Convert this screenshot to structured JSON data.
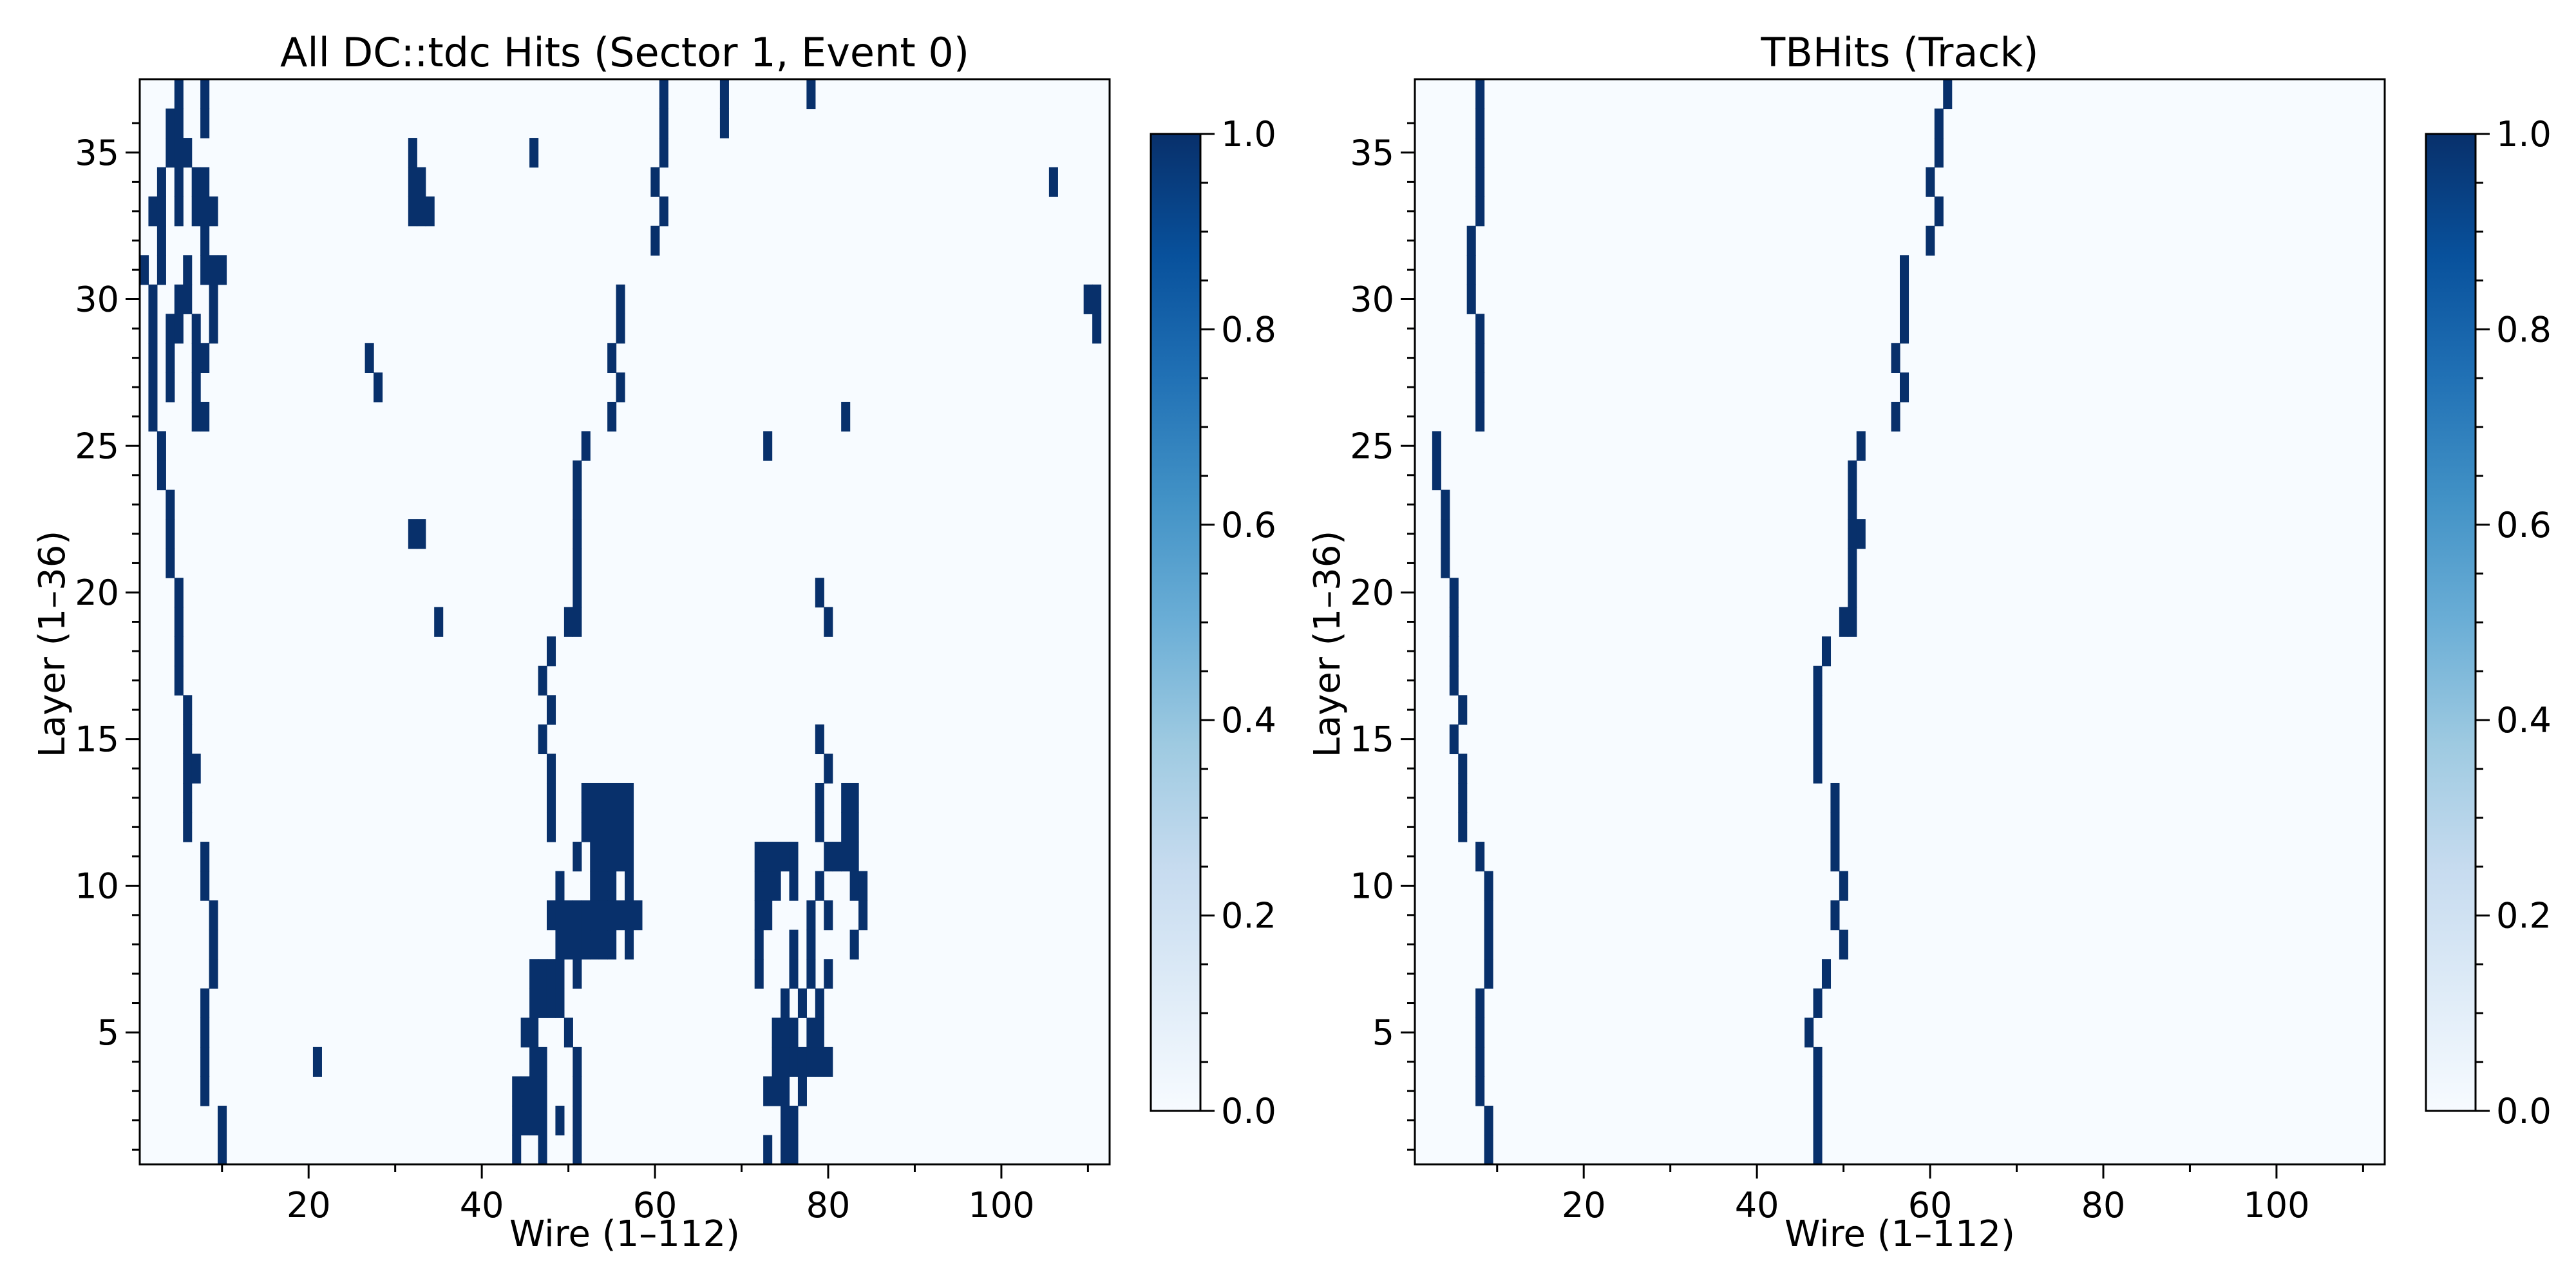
{
  "chart_data": [
    {
      "type": "heatmap",
      "title": "All DC::tdc Hits (Sector 1, Event 0)",
      "xlabel": "Wire (1–112)",
      "ylabel": "Layer (1–36)",
      "xlim": [
        1,
        112
      ],
      "ylim": [
        1,
        36
      ],
      "x_ticks": [
        20,
        40,
        60,
        80,
        100
      ],
      "y_ticks": [
        5,
        10,
        15,
        20,
        25,
        30,
        35
      ],
      "colormap": [
        "#f7fbff",
        "#deebf7",
        "#c6dbef",
        "#9ecae1",
        "#6baed6",
        "#4292c6",
        "#2171b5",
        "#08519c",
        "#08306b"
      ],
      "colorbar": {
        "min": 0.0,
        "max": 1.0,
        "ticks": [
          "0.0",
          "0.2",
          "0.4",
          "0.6",
          "0.8",
          "1.0"
        ]
      },
      "hits": [
        [
          1,
          10
        ],
        [
          1,
          44
        ],
        [
          1,
          47
        ],
        [
          1,
          51
        ],
        [
          1,
          73
        ],
        [
          1,
          75
        ],
        [
          1,
          76
        ],
        [
          2,
          10
        ],
        [
          2,
          44
        ],
        [
          2,
          45
        ],
        [
          2,
          46
        ],
        [
          2,
          47
        ],
        [
          2,
          49
        ],
        [
          2,
          51
        ],
        [
          2,
          75
        ],
        [
          2,
          76
        ],
        [
          3,
          8
        ],
        [
          3,
          44
        ],
        [
          3,
          45
        ],
        [
          3,
          46
        ],
        [
          3,
          47
        ],
        [
          3,
          51
        ],
        [
          3,
          73
        ],
        [
          3,
          74
        ],
        [
          3,
          75
        ],
        [
          3,
          77
        ],
        [
          4,
          8
        ],
        [
          4,
          21
        ],
        [
          4,
          46
        ],
        [
          4,
          47
        ],
        [
          4,
          51
        ],
        [
          4,
          74
        ],
        [
          4,
          75
        ],
        [
          4,
          76
        ],
        [
          4,
          77
        ],
        [
          4,
          78
        ],
        [
          4,
          79
        ],
        [
          4,
          80
        ],
        [
          5,
          8
        ],
        [
          5,
          45
        ],
        [
          5,
          46
        ],
        [
          5,
          50
        ],
        [
          5,
          74
        ],
        [
          5,
          75
        ],
        [
          5,
          76
        ],
        [
          5,
          78
        ],
        [
          5,
          79
        ],
        [
          6,
          8
        ],
        [
          6,
          46
        ],
        [
          6,
          47
        ],
        [
          6,
          48
        ],
        [
          6,
          49
        ],
        [
          6,
          75
        ],
        [
          6,
          77
        ],
        [
          6,
          79
        ],
        [
          7,
          9
        ],
        [
          7,
          46
        ],
        [
          7,
          47
        ],
        [
          7,
          48
        ],
        [
          7,
          49
        ],
        [
          7,
          51
        ],
        [
          7,
          72
        ],
        [
          7,
          76
        ],
        [
          7,
          78
        ],
        [
          7,
          80
        ],
        [
          8,
          9
        ],
        [
          8,
          49
        ],
        [
          8,
          50
        ],
        [
          8,
          51
        ],
        [
          8,
          52
        ],
        [
          8,
          53
        ],
        [
          8,
          54
        ],
        [
          8,
          55
        ],
        [
          8,
          57
        ],
        [
          8,
          72
        ],
        [
          8,
          76
        ],
        [
          8,
          78
        ],
        [
          8,
          83
        ],
        [
          9,
          9
        ],
        [
          9,
          48
        ],
        [
          9,
          49
        ],
        [
          9,
          50
        ],
        [
          9,
          51
        ],
        [
          9,
          52
        ],
        [
          9,
          53
        ],
        [
          9,
          54
        ],
        [
          9,
          55
        ],
        [
          9,
          56
        ],
        [
          9,
          57
        ],
        [
          9,
          58
        ],
        [
          9,
          72
        ],
        [
          9,
          73
        ],
        [
          9,
          78
        ],
        [
          9,
          80
        ],
        [
          9,
          84
        ],
        [
          10,
          8
        ],
        [
          10,
          49
        ],
        [
          10,
          53
        ],
        [
          10,
          54
        ],
        [
          10,
          55
        ],
        [
          10,
          57
        ],
        [
          10,
          72
        ],
        [
          10,
          73
        ],
        [
          10,
          74
        ],
        [
          10,
          76
        ],
        [
          10,
          79
        ],
        [
          10,
          83
        ],
        [
          10,
          84
        ],
        [
          11,
          8
        ],
        [
          11,
          51
        ],
        [
          11,
          53
        ],
        [
          11,
          54
        ],
        [
          11,
          55
        ],
        [
          11,
          56
        ],
        [
          11,
          57
        ],
        [
          11,
          72
        ],
        [
          11,
          73
        ],
        [
          11,
          74
        ],
        [
          11,
          75
        ],
        [
          11,
          76
        ],
        [
          11,
          80
        ],
        [
          11,
          81
        ],
        [
          11,
          82
        ],
        [
          11,
          83
        ],
        [
          12,
          6
        ],
        [
          12,
          48
        ],
        [
          12,
          52
        ],
        [
          12,
          53
        ],
        [
          12,
          54
        ],
        [
          12,
          55
        ],
        [
          12,
          56
        ],
        [
          12,
          57
        ],
        [
          12,
          79
        ],
        [
          12,
          82
        ],
        [
          12,
          83
        ],
        [
          13,
          6
        ],
        [
          13,
          48
        ],
        [
          13,
          52
        ],
        [
          13,
          53
        ],
        [
          13,
          54
        ],
        [
          13,
          55
        ],
        [
          13,
          56
        ],
        [
          13,
          57
        ],
        [
          13,
          79
        ],
        [
          13,
          82
        ],
        [
          13,
          83
        ],
        [
          14,
          6
        ],
        [
          14,
          7
        ],
        [
          14,
          48
        ],
        [
          14,
          80
        ],
        [
          15,
          6
        ],
        [
          15,
          47
        ],
        [
          15,
          79
        ],
        [
          16,
          6
        ],
        [
          16,
          48
        ],
        [
          17,
          5
        ],
        [
          17,
          47
        ],
        [
          18,
          5
        ],
        [
          18,
          48
        ],
        [
          19,
          5
        ],
        [
          19,
          35
        ],
        [
          19,
          50
        ],
        [
          19,
          51
        ],
        [
          19,
          80
        ],
        [
          20,
          5
        ],
        [
          20,
          51
        ],
        [
          20,
          79
        ],
        [
          21,
          4
        ],
        [
          21,
          51
        ],
        [
          22,
          4
        ],
        [
          22,
          32
        ],
        [
          22,
          33
        ],
        [
          22,
          51
        ],
        [
          23,
          4
        ],
        [
          23,
          51
        ],
        [
          24,
          3
        ],
        [
          24,
          51
        ],
        [
          25,
          3
        ],
        [
          25,
          52
        ],
        [
          25,
          73
        ],
        [
          26,
          2
        ],
        [
          26,
          7
        ],
        [
          26,
          8
        ],
        [
          26,
          55
        ],
        [
          26,
          82
        ],
        [
          27,
          2
        ],
        [
          27,
          4
        ],
        [
          27,
          7
        ],
        [
          27,
          28
        ],
        [
          27,
          56
        ],
        [
          28,
          2
        ],
        [
          28,
          4
        ],
        [
          28,
          7
        ],
        [
          28,
          8
        ],
        [
          28,
          27
        ],
        [
          28,
          55
        ],
        [
          29,
          2
        ],
        [
          29,
          4
        ],
        [
          29,
          5
        ],
        [
          29,
          7
        ],
        [
          29,
          9
        ],
        [
          29,
          56
        ],
        [
          29,
          111
        ],
        [
          30,
          2
        ],
        [
          30,
          5
        ],
        [
          30,
          6
        ],
        [
          30,
          9
        ],
        [
          30,
          56
        ],
        [
          30,
          110
        ],
        [
          30,
          111
        ],
        [
          31,
          1
        ],
        [
          31,
          3
        ],
        [
          31,
          6
        ],
        [
          31,
          8
        ],
        [
          31,
          9
        ],
        [
          31,
          10
        ],
        [
          32,
          3
        ],
        [
          32,
          8
        ],
        [
          32,
          60
        ],
        [
          33,
          2
        ],
        [
          33,
          3
        ],
        [
          33,
          5
        ],
        [
          33,
          7
        ],
        [
          33,
          8
        ],
        [
          33,
          9
        ],
        [
          33,
          32
        ],
        [
          33,
          33
        ],
        [
          33,
          34
        ],
        [
          33,
          61
        ],
        [
          34,
          3
        ],
        [
          34,
          5
        ],
        [
          34,
          7
        ],
        [
          34,
          8
        ],
        [
          34,
          32
        ],
        [
          34,
          33
        ],
        [
          34,
          60
        ],
        [
          34,
          106
        ],
        [
          35,
          4
        ],
        [
          35,
          5
        ],
        [
          35,
          6
        ],
        [
          35,
          32
        ],
        [
          35,
          46
        ],
        [
          35,
          61
        ],
        [
          36,
          4
        ],
        [
          36,
          5
        ],
        [
          36,
          8
        ],
        [
          36,
          61
        ],
        [
          36,
          68
        ],
        [
          37,
          5
        ],
        [
          37,
          8
        ],
        [
          37,
          61
        ],
        [
          37,
          68
        ],
        [
          37,
          78
        ]
      ]
    },
    {
      "type": "heatmap",
      "title": "TBHits (Track)",
      "xlabel": "Wire (1–112)",
      "ylabel": "Layer (1–36)",
      "xlim": [
        1,
        112
      ],
      "ylim": [
        1,
        36
      ],
      "x_ticks": [
        20,
        40,
        60,
        80,
        100
      ],
      "y_ticks": [
        5,
        10,
        15,
        20,
        25,
        30,
        35
      ],
      "colormap": [
        "#f7fbff",
        "#deebf7",
        "#c6dbef",
        "#9ecae1",
        "#6baed6",
        "#4292c6",
        "#2171b5",
        "#08519c",
        "#08306b"
      ],
      "colorbar": {
        "min": 0.0,
        "max": 1.0,
        "ticks": [
          "0.0",
          "0.2",
          "0.4",
          "0.6",
          "0.8",
          "1.0"
        ]
      },
      "hits": [
        [
          1,
          9
        ],
        [
          1,
          47
        ],
        [
          2,
          9
        ],
        [
          2,
          47
        ],
        [
          3,
          8
        ],
        [
          3,
          47
        ],
        [
          4,
          8
        ],
        [
          4,
          47
        ],
        [
          5,
          8
        ],
        [
          5,
          46
        ],
        [
          6,
          8
        ],
        [
          6,
          47
        ],
        [
          7,
          9
        ],
        [
          7,
          48
        ],
        [
          8,
          9
        ],
        [
          8,
          50
        ],
        [
          9,
          9
        ],
        [
          9,
          49
        ],
        [
          10,
          9
        ],
        [
          10,
          50
        ],
        [
          11,
          8
        ],
        [
          11,
          49
        ],
        [
          12,
          6
        ],
        [
          12,
          49
        ],
        [
          13,
          6
        ],
        [
          13,
          49
        ],
        [
          14,
          6
        ],
        [
          14,
          47
        ],
        [
          15,
          5
        ],
        [
          15,
          47
        ],
        [
          16,
          6
        ],
        [
          16,
          47
        ],
        [
          17,
          5
        ],
        [
          17,
          47
        ],
        [
          18,
          5
        ],
        [
          18,
          48
        ],
        [
          19,
          5
        ],
        [
          19,
          50
        ],
        [
          19,
          51
        ],
        [
          20,
          5
        ],
        [
          20,
          51
        ],
        [
          21,
          4
        ],
        [
          21,
          51
        ],
        [
          22,
          4
        ],
        [
          22,
          51
        ],
        [
          22,
          52
        ],
        [
          23,
          4
        ],
        [
          23,
          51
        ],
        [
          24,
          3
        ],
        [
          24,
          51
        ],
        [
          25,
          3
        ],
        [
          25,
          52
        ],
        [
          26,
          8
        ],
        [
          26,
          56
        ],
        [
          27,
          8
        ],
        [
          27,
          57
        ],
        [
          28,
          8
        ],
        [
          28,
          56
        ],
        [
          29,
          8
        ],
        [
          29,
          57
        ],
        [
          30,
          7
        ],
        [
          30,
          57
        ],
        [
          31,
          7
        ],
        [
          31,
          57
        ],
        [
          32,
          7
        ],
        [
          32,
          60
        ],
        [
          33,
          8
        ],
        [
          33,
          61
        ],
        [
          34,
          8
        ],
        [
          34,
          60
        ],
        [
          35,
          8
        ],
        [
          35,
          61
        ],
        [
          36,
          8
        ],
        [
          36,
          61
        ],
        [
          37,
          8
        ],
        [
          37,
          62
        ]
      ]
    }
  ]
}
